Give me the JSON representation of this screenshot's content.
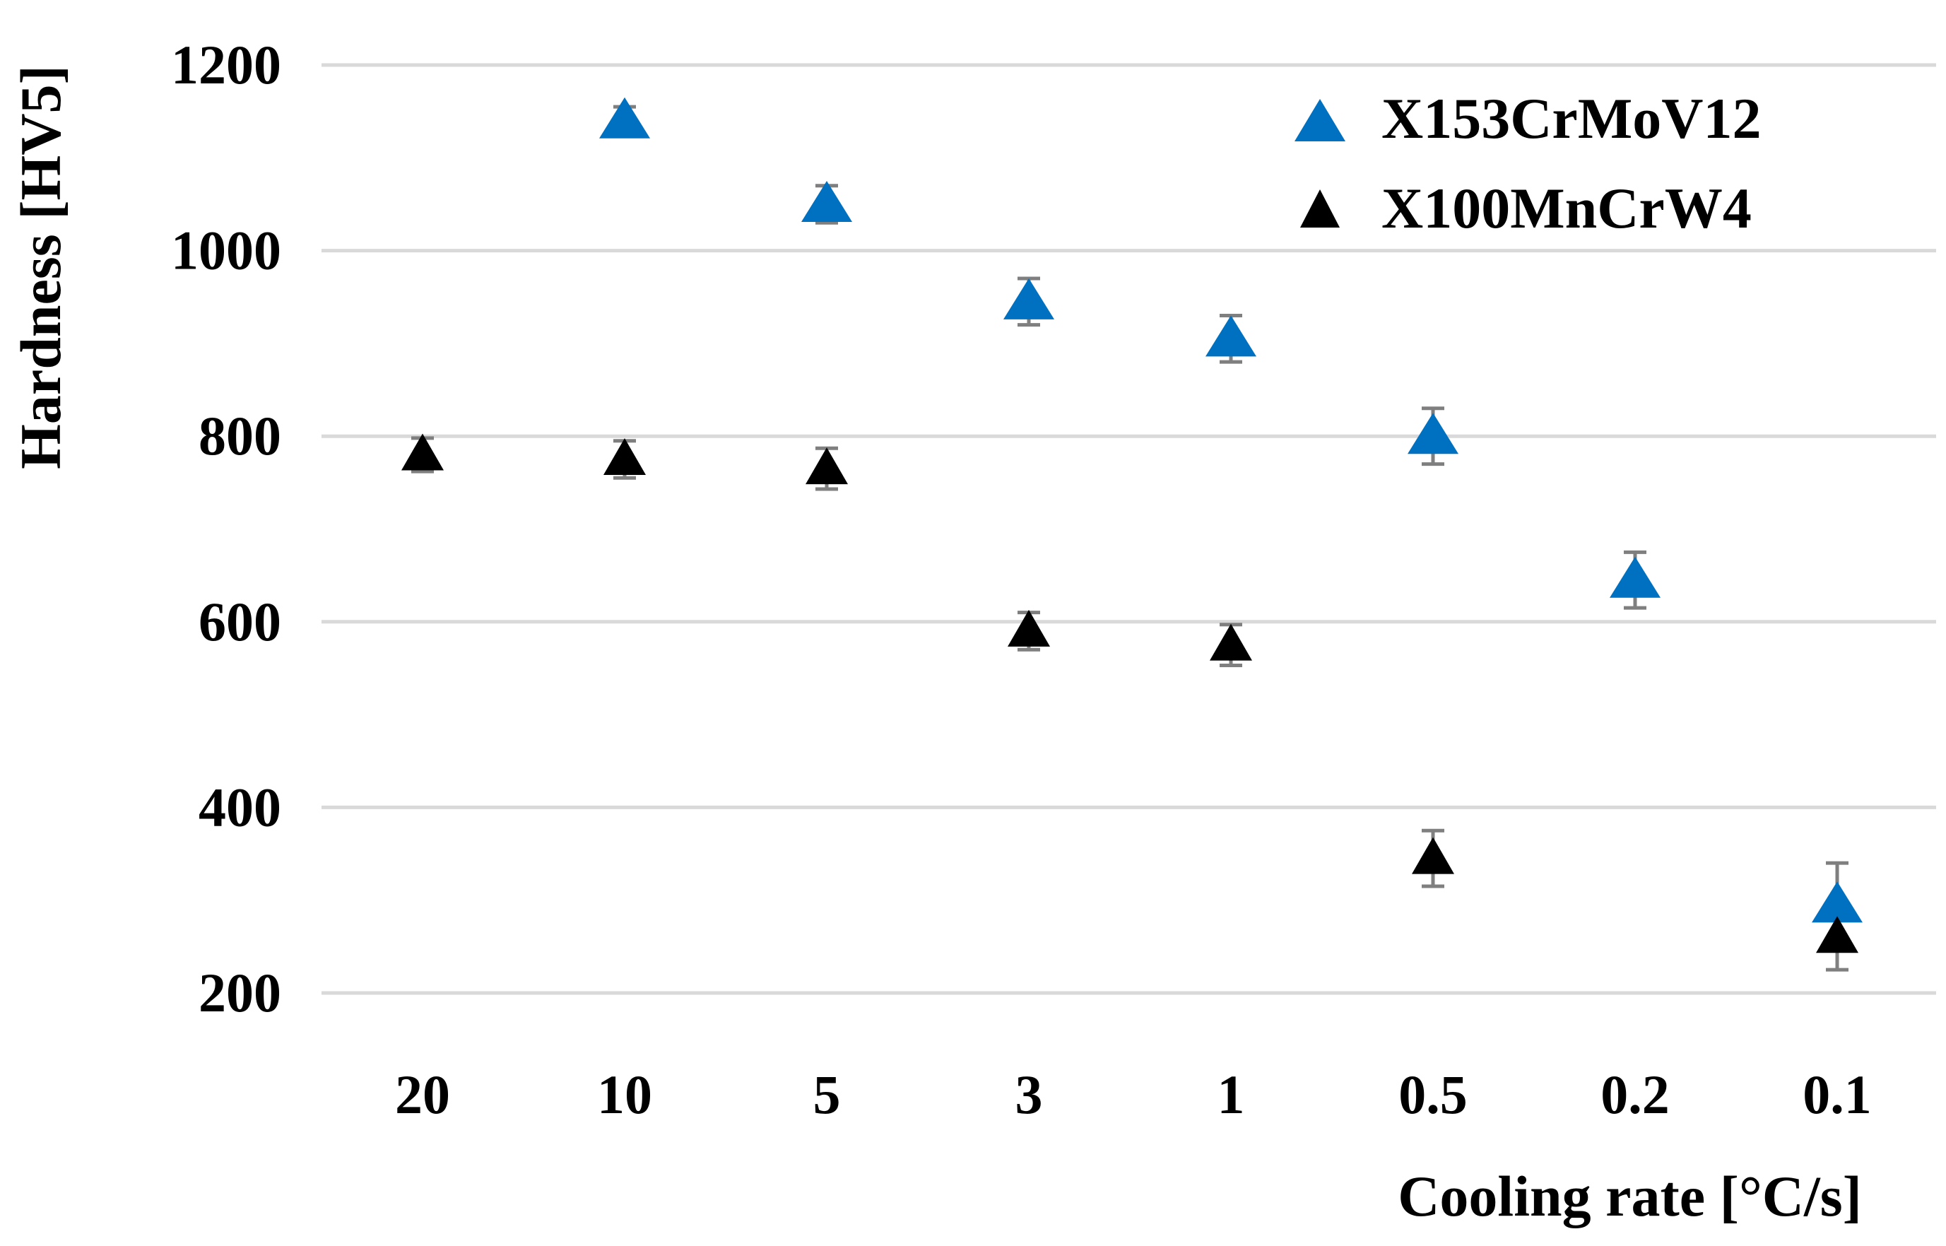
{
  "chart_data": {
    "type": "scatter",
    "title": "",
    "xlabel": "Cooling rate [°C/s]",
    "ylabel": "Hardness [HV5]",
    "categories": [
      "20",
      "10",
      "5",
      "3",
      "1",
      "0.5",
      "0.2",
      "0.1"
    ],
    "ylim": [
      200,
      1200
    ],
    "yticks": [
      200,
      400,
      600,
      800,
      1000,
      1200
    ],
    "grid": true,
    "legend_position": "top-right",
    "series": [
      {
        "name": "X153CrMoV12",
        "color": "#0070c0",
        "marker": "triangle",
        "values": [
          null,
          1140,
          1050,
          945,
          905,
          800,
          645,
          295
        ],
        "errors": [
          null,
          15,
          20,
          25,
          25,
          30,
          30,
          45
        ]
      },
      {
        "name": "X100MnCrW4",
        "color": "#000000",
        "marker": "triangle",
        "values": [
          780,
          775,
          765,
          590,
          575,
          345,
          null,
          260
        ],
        "errors": [
          18,
          20,
          22,
          20,
          22,
          30,
          null,
          35
        ]
      }
    ]
  }
}
